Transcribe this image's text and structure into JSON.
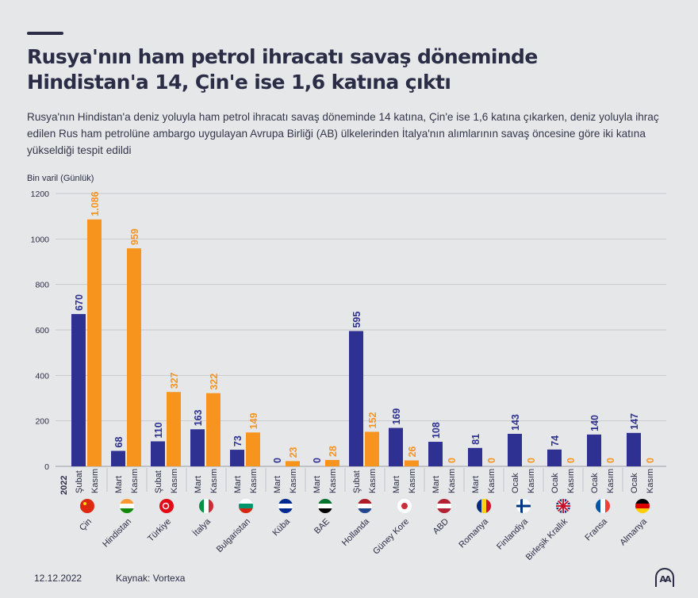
{
  "header": {
    "title_line1": "Rusya'nın ham petrol ihracatı savaş döneminde",
    "title_line2": "Hindistan'a 14, Çin'e ise 1,6 katına çıktı",
    "subtitle": "Rusya'nın Hindistan'a deniz yoluyla ham petrol ihracatı savaş döneminde 14 katına, Çin'e ise 1,6 katına çıkarken, deniz yoluyla ihraç edilen Rus ham petrolüne ambargo uygulayan Avrupa Birliği (AB) ülkelerinden İtalya'nın alımlarının savaş öncesine göre iki katına yükseldiği tespit edildi"
  },
  "footer": {
    "date": "12.12.2022",
    "source": "Kaynak: Vortexa",
    "logo": "AA"
  },
  "colors": {
    "before": "#2e3192",
    "after": "#f7941d",
    "text": "#2a2d45",
    "background": "#e6e7e9"
  },
  "chart_data": {
    "type": "bar",
    "ylabel": "Bin varil (Günlük)",
    "ylim": [
      0,
      1200
    ],
    "yticks": [
      0,
      200,
      400,
      600,
      800,
      1000,
      1200
    ],
    "grid": true,
    "year_label": "2022",
    "categories": [
      "Çin",
      "Hindistan",
      "Türkiye",
      "İtalya",
      "Bulgaristan",
      "Küba",
      "BAE",
      "Hollanda",
      "Güney Kore",
      "ABD",
      "Romanya",
      "Finlandiya",
      "Birleşik Krallık",
      "Fransa",
      "Almanya"
    ],
    "flags": [
      "china-flag",
      "india-flag",
      "turkey-flag",
      "italy-flag",
      "bulgaria-flag",
      "cuba-flag",
      "uae-flag",
      "netherlands-flag",
      "south-korea-flag",
      "usa-flag",
      "romania-flag",
      "finland-flag",
      "uk-flag",
      "france-flag",
      "germany-flag"
    ],
    "series": [
      {
        "name": "before",
        "months": [
          "Şubat",
          "Mart",
          "Şubat",
          "Mart",
          "Mart",
          "Mart",
          "Mart",
          "Şubat",
          "Mart",
          "Mart",
          "Mart",
          "Ocak",
          "Ocak",
          "Ocak",
          "Ocak"
        ],
        "values": [
          670,
          68,
          110,
          163,
          73,
          0,
          0,
          595,
          169,
          108,
          81,
          143,
          74,
          140,
          147
        ],
        "labels": [
          "670",
          "68",
          "110",
          "163",
          "73",
          "0",
          "0",
          "595",
          "169",
          "108",
          "81",
          "143",
          "74",
          "140",
          "147"
        ]
      },
      {
        "name": "Kasım",
        "months": [
          "Kasım",
          "Kasım",
          "Kasım",
          "Kasım",
          "Kasım",
          "Kasım",
          "Kasım",
          "Kasım",
          "Kasım",
          "Kasım",
          "Kasım",
          "Kasım",
          "Kasım",
          "Kasım",
          "Kasım"
        ],
        "values": [
          1086,
          959,
          327,
          322,
          149,
          23,
          28,
          152,
          26,
          0,
          0,
          0,
          0,
          0,
          0
        ],
        "labels": [
          "1.086",
          "959",
          "327",
          "322",
          "149",
          "23",
          "28",
          "152",
          "26",
          "0",
          "0",
          "0",
          "0",
          "0",
          "0"
        ]
      }
    ]
  }
}
